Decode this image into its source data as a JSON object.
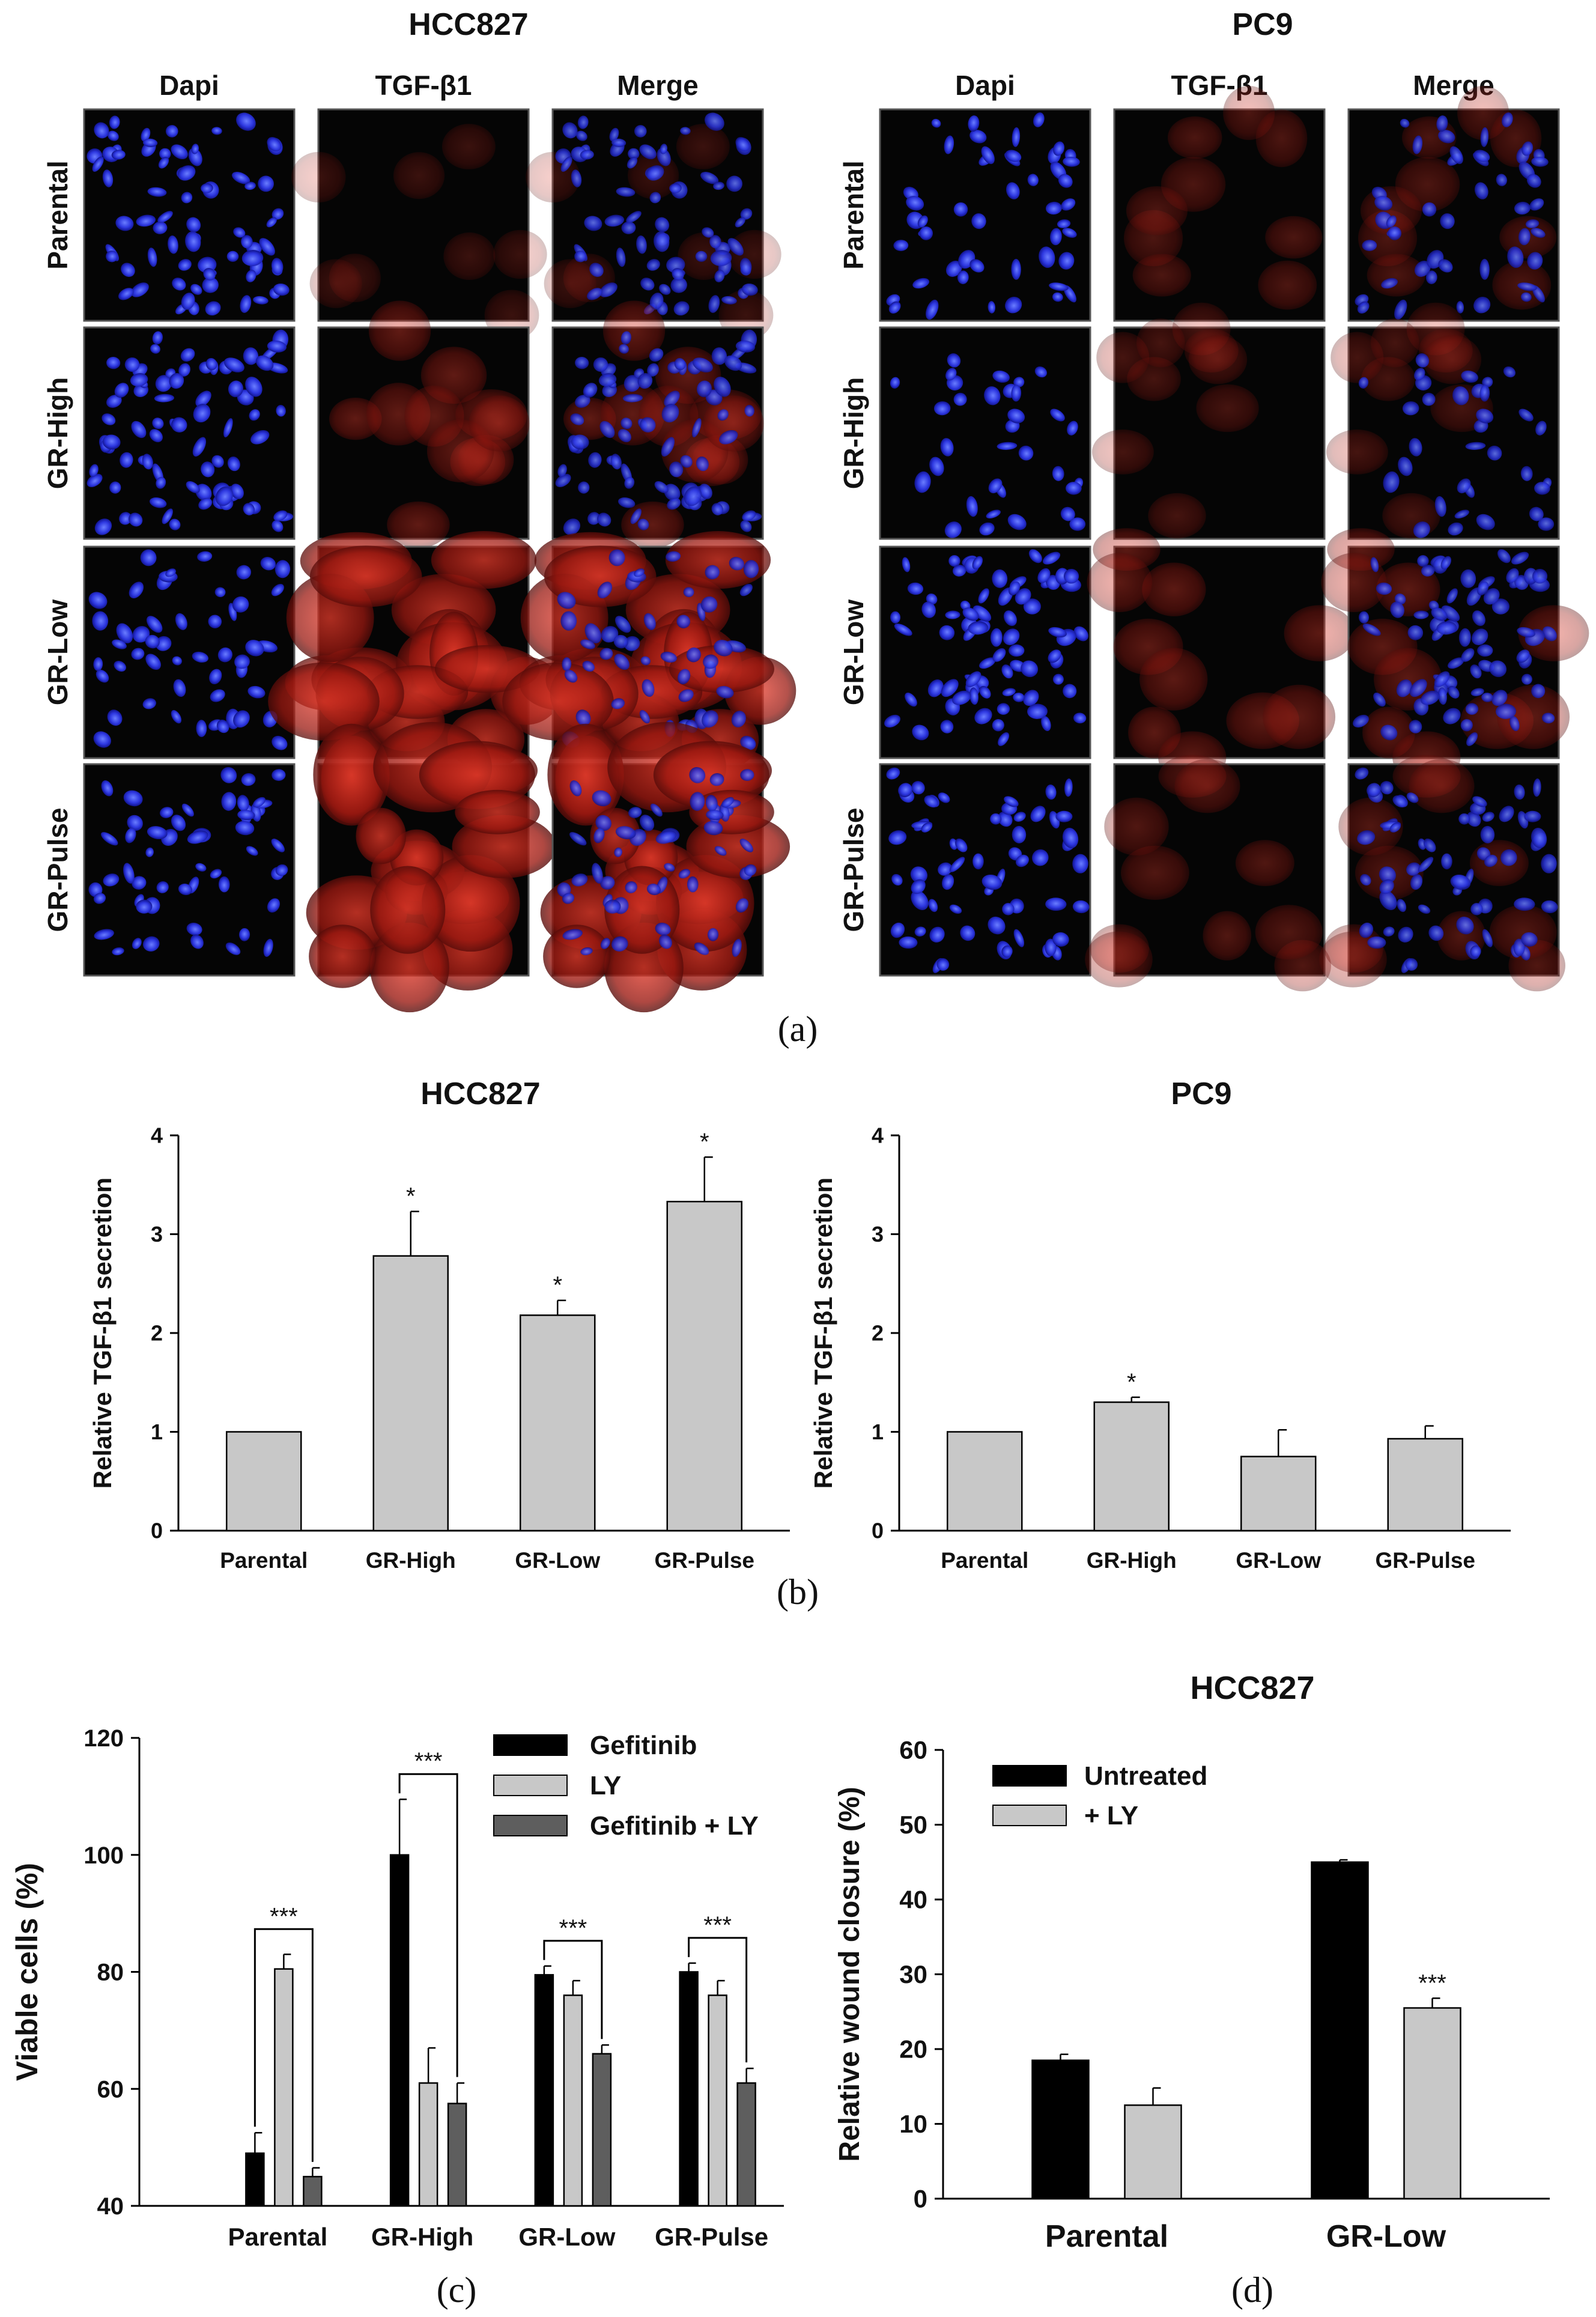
{
  "panel_a": {
    "label": "(a)",
    "groups": [
      {
        "title": "HCC827",
        "columns": [
          "Dapi",
          "TGF-β1",
          "Merge"
        ],
        "rows": [
          "Parental",
          "GR-High",
          "GR-Low",
          "GR-Pulse"
        ],
        "red_intensity": [
          0.12,
          0.35,
          0.8,
          0.85
        ],
        "cell_density": [
          0.9,
          1.0,
          0.55,
          0.6
        ]
      },
      {
        "title": "PC9",
        "columns": [
          "Dapi",
          "TGF-β1",
          "Merge"
        ],
        "rows": [
          "Parental",
          "GR-High",
          "GR-Low",
          "GR-Pulse"
        ],
        "red_intensity": [
          0.22,
          0.18,
          0.32,
          0.25
        ],
        "cell_density": [
          0.5,
          0.25,
          0.95,
          0.75
        ]
      }
    ]
  },
  "chart_data": [
    {
      "id": "b-hcc827",
      "type": "bar",
      "title": "HCC827",
      "ylabel": "Relative TGF-β1 secretion",
      "categories": [
        "Parental",
        "GR-High",
        "GR-Low",
        "GR-Pulse"
      ],
      "values": [
        1.0,
        2.78,
        2.18,
        3.33
      ],
      "errors": [
        0,
        0.45,
        0.15,
        0.45
      ],
      "annotations": [
        "",
        "*",
        "*",
        "*"
      ],
      "ylim": [
        0,
        4
      ],
      "yticks": [
        "0",
        "1",
        "2",
        "3",
        "4"
      ],
      "color": "#c8c8c8"
    },
    {
      "id": "b-pc9",
      "type": "bar",
      "title": "PC9",
      "ylabel": "Relative TGF-β1 secretion",
      "categories": [
        "Parental",
        "GR-High",
        "GR-Low",
        "GR-Pulse"
      ],
      "values": [
        1.0,
        1.3,
        0.75,
        0.93
      ],
      "errors": [
        0,
        0.05,
        0.27,
        0.13
      ],
      "annotations": [
        "",
        "*",
        "",
        ""
      ],
      "ylim": [
        0,
        4
      ],
      "yticks": [
        "0",
        "1",
        "2",
        "3",
        "4"
      ],
      "color": "#c8c8c8"
    },
    {
      "id": "c",
      "type": "bar",
      "title": "",
      "ylabel": "Viable cells (%)",
      "categories": [
        "Parental",
        "GR-High",
        "GR-Low",
        "GR-Pulse"
      ],
      "series": [
        {
          "name": "Gefitinib",
          "values": [
            49,
            100,
            79.5,
            80
          ],
          "errors": [
            3.5,
            9.5,
            1.5,
            1.5
          ],
          "color": "#000000"
        },
        {
          "name": "LY",
          "values": [
            80.5,
            61,
            76,
            76
          ],
          "errors": [
            2.5,
            6,
            2.5,
            2.5
          ],
          "color": "#c8c8c8"
        },
        {
          "name": "Gefitinib + LY",
          "values": [
            45,
            57.5,
            66,
            61
          ],
          "errors": [
            1.5,
            3.5,
            1.5,
            2.5
          ],
          "color": "#5e5e5e"
        }
      ],
      "significance": [
        "***",
        "***",
        "***",
        "***"
      ],
      "ylim": [
        40,
        120
      ],
      "yticks": [
        "40",
        "60",
        "80",
        "100",
        "120"
      ],
      "legend": "top-right"
    },
    {
      "id": "d",
      "type": "bar",
      "title": "HCC827",
      "ylabel": "Relative wound closure (%)",
      "categories": [
        "Parental",
        "GR-Low"
      ],
      "series": [
        {
          "name": "Untreated",
          "values": [
            18.5,
            45
          ],
          "errors": [
            0.8,
            0.3
          ],
          "color": "#000000"
        },
        {
          "name": "+ LY",
          "values": [
            12.5,
            25.5
          ],
          "errors": [
            2.3,
            1.3
          ],
          "color": "#c8c8c8"
        }
      ],
      "annotations": [
        [
          "",
          ""
        ],
        [
          "",
          "***"
        ]
      ],
      "ylim": [
        0,
        60
      ],
      "yticks": [
        "0",
        "10",
        "20",
        "30",
        "40",
        "50",
        "60"
      ],
      "legend": "top-left"
    }
  ],
  "labels": {
    "b": "(b)",
    "c": "(c)",
    "d": "(d)"
  }
}
